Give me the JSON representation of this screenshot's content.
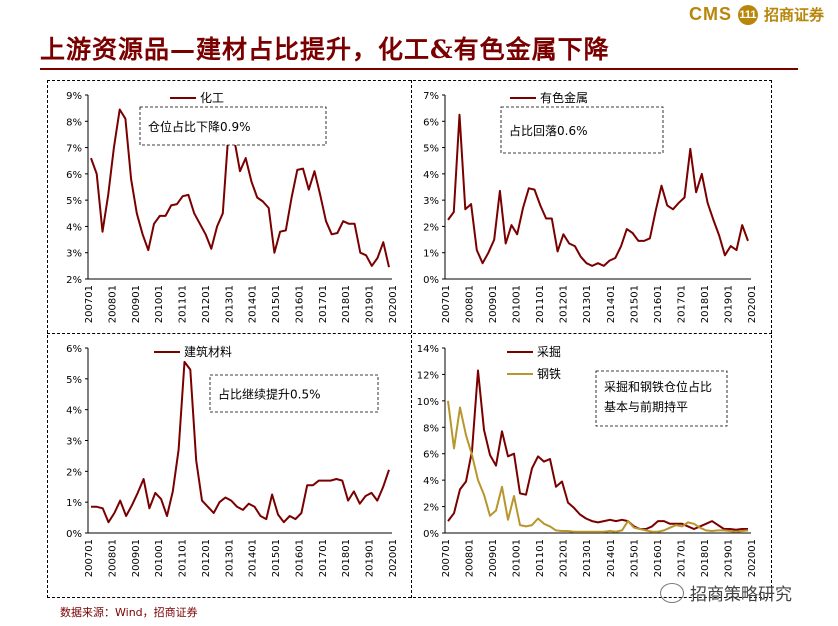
{
  "header": {
    "brand": "CMS",
    "brand_mark": "111",
    "brand_cn": "招商证券",
    "title": "上游资源品—建材占比提升，化工&有色金属下降"
  },
  "footer": {
    "source": "数据来源：Wind，招商证券",
    "watermark": "招商策略研究"
  },
  "colors": {
    "primary": "#7a0000",
    "secondary": "#b8962e",
    "title": "#7a0000"
  },
  "x_ticks": [
    "200701",
    "200801",
    "200901",
    "201001",
    "201101",
    "201201",
    "201301",
    "201401",
    "201501",
    "201601",
    "201701",
    "201801",
    "201901",
    "202001"
  ],
  "chart_data": [
    {
      "type": "line",
      "title": "化工",
      "annotation": "仓位占比下降0.9%",
      "yticks": [
        "2%",
        "3%",
        "4%",
        "5%",
        "6%",
        "7%",
        "8%",
        "9%"
      ],
      "ylim": [
        2,
        9
      ],
      "series": [
        {
          "name": "化工",
          "color": "#7a0000",
          "values": [
            6.6,
            6.0,
            3.8,
            5.2,
            7.0,
            8.45,
            8.1,
            5.8,
            4.5,
            3.7,
            3.1,
            4.1,
            4.4,
            4.4,
            4.8,
            4.85,
            5.15,
            5.2,
            4.5,
            4.1,
            3.7,
            3.15,
            4.0,
            4.5,
            7.6,
            7.3,
            6.1,
            6.6,
            5.7,
            5.1,
            4.95,
            4.7,
            3.0,
            3.8,
            3.85,
            5.1,
            6.15,
            6.2,
            5.4,
            6.1,
            5.2,
            4.2,
            3.7,
            3.75,
            4.2,
            4.1,
            4.1,
            3.0,
            2.9,
            2.5,
            2.8,
            3.4,
            2.45
          ]
        }
      ]
    },
    {
      "type": "line",
      "title": "有色金属",
      "annotation": "占比回落0.6%",
      "yticks": [
        "0%",
        "1%",
        "2%",
        "3%",
        "4%",
        "5%",
        "6%",
        "7%"
      ],
      "ylim": [
        0,
        7
      ],
      "series": [
        {
          "name": "有色金属",
          "color": "#7a0000",
          "values": [
            2.25,
            2.55,
            6.25,
            2.65,
            2.85,
            1.1,
            0.6,
            1.0,
            1.5,
            3.35,
            1.35,
            2.05,
            1.7,
            2.7,
            3.45,
            3.4,
            2.8,
            2.3,
            2.3,
            1.05,
            1.7,
            1.35,
            1.25,
            0.85,
            0.6,
            0.5,
            0.6,
            0.5,
            0.7,
            0.8,
            1.25,
            1.9,
            1.75,
            1.45,
            1.45,
            1.55,
            2.6,
            3.55,
            2.8,
            2.65,
            2.9,
            3.1,
            4.95,
            3.3,
            4.0,
            2.9,
            2.25,
            1.65,
            0.9,
            1.25,
            1.1,
            2.05,
            1.45
          ]
        }
      ]
    },
    {
      "type": "line",
      "title": "建筑材料",
      "annotation": "占比继续提升0.5%",
      "yticks": [
        "0%",
        "1%",
        "2%",
        "3%",
        "4%",
        "5%",
        "6%"
      ],
      "ylim": [
        0,
        6
      ],
      "series": [
        {
          "name": "建筑材料",
          "color": "#7a0000",
          "values": [
            0.85,
            0.85,
            0.8,
            0.35,
            0.65,
            1.05,
            0.55,
            0.9,
            1.3,
            1.75,
            0.8,
            1.3,
            1.1,
            0.55,
            1.35,
            2.7,
            5.55,
            5.3,
            2.35,
            1.05,
            0.85,
            0.65,
            1.0,
            1.15,
            1.05,
            0.85,
            0.75,
            0.95,
            0.85,
            0.55,
            0.45,
            1.25,
            0.6,
            0.35,
            0.55,
            0.45,
            0.65,
            1.55,
            1.55,
            1.7,
            1.7,
            1.7,
            1.75,
            1.7,
            1.05,
            1.35,
            0.95,
            1.2,
            1.3,
            1.05,
            1.5,
            2.05
          ]
        }
      ]
    },
    {
      "type": "line",
      "title": "采掘",
      "annotation": "采掘和钢铁仓位占比基本与前期持平",
      "yticks": [
        "0%",
        "2%",
        "4%",
        "6%",
        "8%",
        "10%",
        "12%",
        "14%"
      ],
      "ylim": [
        0,
        14
      ],
      "series": [
        {
          "name": "采掘",
          "color": "#7a0000",
          "values": [
            0.9,
            1.5,
            3.3,
            3.9,
            6.2,
            12.3,
            7.8,
            5.9,
            5.1,
            7.7,
            5.8,
            6.0,
            3.0,
            2.9,
            4.9,
            5.8,
            5.4,
            5.6,
            3.5,
            3.9,
            2.3,
            1.9,
            1.4,
            1.1,
            0.9,
            0.8,
            0.9,
            1.0,
            0.9,
            1.0,
            0.9,
            0.5,
            0.3,
            0.3,
            0.5,
            0.9,
            0.9,
            0.7,
            0.7,
            0.7,
            0.5,
            0.3,
            0.5,
            0.7,
            0.9,
            0.6,
            0.3,
            0.3,
            0.25,
            0.3,
            0.3
          ]
        },
        {
          "name": "钢铁",
          "color": "#b8962e",
          "values": [
            10.0,
            6.4,
            9.5,
            7.4,
            5.9,
            4.0,
            2.9,
            1.3,
            1.7,
            3.5,
            1.0,
            2.8,
            0.6,
            0.5,
            0.6,
            1.1,
            0.7,
            0.5,
            0.2,
            0.15,
            0.15,
            0.1,
            0.1,
            0.1,
            0.1,
            0.1,
            0.1,
            0.15,
            0.1,
            0.2,
            0.9,
            0.4,
            0.3,
            0.2,
            0.1,
            0.1,
            0.2,
            0.4,
            0.6,
            0.5,
            0.8,
            0.7,
            0.4,
            0.2,
            0.15,
            0.2,
            0.2,
            0.15,
            0.1,
            0.15,
            0.2
          ]
        }
      ]
    }
  ]
}
